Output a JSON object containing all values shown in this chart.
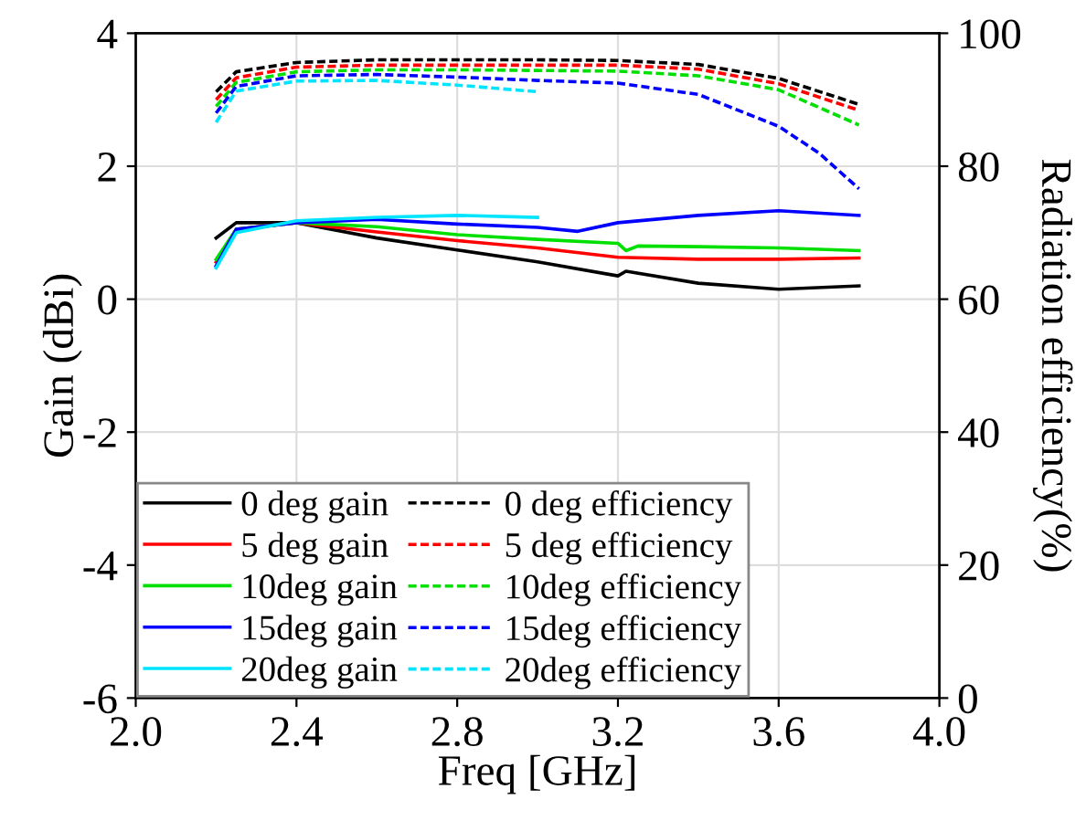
{
  "chart_data": {
    "type": "line",
    "xlabel": "Freq [GHz]",
    "ylabel": "Gain (dBi)",
    "y2label": "Radiation efficiency(%)",
    "xlim": [
      2.0,
      4.0
    ],
    "xticks": [
      {
        "value": 2.0,
        "label": "2.0"
      },
      2.4,
      2.8,
      3.2,
      3.6,
      {
        "value": 4.0,
        "label": "4.0"
      }
    ],
    "ylim": [
      -6,
      4
    ],
    "yticks": [
      -6,
      -4,
      -2,
      0,
      2,
      4
    ],
    "y2lim": [
      0,
      100
    ],
    "y2ticks": [
      0,
      20,
      40,
      60,
      80,
      100
    ],
    "grid": true,
    "legend": "bottom left",
    "marker": "none",
    "series": [
      {
        "name": "0 deg gain",
        "color": "#000000",
        "line_style": "solid",
        "x": [
          2.2,
          2.25,
          2.4,
          2.6,
          2.8,
          3.0,
          3.2,
          3.22,
          3.4,
          3.6,
          3.8
        ],
        "values": [
          0.92,
          1.15,
          1.15,
          0.92,
          0.74,
          0.56,
          0.35,
          0.42,
          0.24,
          0.15,
          0.2
        ]
      },
      {
        "name": "5 deg gain",
        "color": "#ff0000",
        "line_style": "solid",
        "x": [
          2.2,
          2.25,
          2.4,
          2.6,
          2.8,
          3.0,
          3.2,
          3.4,
          3.6,
          3.8
        ],
        "values": [
          0.56,
          1.05,
          1.15,
          1.01,
          0.88,
          0.77,
          0.63,
          0.6,
          0.6,
          0.62
        ]
      },
      {
        "name": "10deg gain",
        "color": "#00e000",
        "line_style": "solid",
        "x": [
          2.2,
          2.25,
          2.4,
          2.6,
          2.8,
          3.0,
          3.2,
          3.22,
          3.25,
          3.4,
          3.6,
          3.8
        ],
        "values": [
          0.6,
          1.05,
          1.15,
          1.09,
          0.97,
          0.9,
          0.84,
          0.73,
          0.8,
          0.79,
          0.77,
          0.73
        ]
      },
      {
        "name": "15deg gain",
        "color": "#0000ff",
        "line_style": "solid",
        "x": [
          2.2,
          2.25,
          2.4,
          2.6,
          2.8,
          3.0,
          3.1,
          3.2,
          3.4,
          3.6,
          3.8
        ],
        "values": [
          0.5,
          1.05,
          1.15,
          1.2,
          1.13,
          1.08,
          1.02,
          1.15,
          1.26,
          1.33,
          1.26
        ]
      },
      {
        "name": "20deg gain",
        "color": "#00e5ff",
        "line_style": "solid",
        "x": [
          2.2,
          2.25,
          2.4,
          2.6,
          2.8,
          3.0
        ],
        "values": [
          0.47,
          1.0,
          1.18,
          1.23,
          1.26,
          1.23
        ]
      },
      {
        "name": "0 deg efficiency",
        "color": "#000000",
        "line_style": "dashed",
        "axis": "y2",
        "x": [
          2.2,
          2.25,
          2.4,
          2.6,
          2.8,
          3.0,
          3.2,
          3.4,
          3.6,
          3.8
        ],
        "values": [
          91.2,
          94.2,
          95.6,
          96.0,
          96.0,
          96.0,
          95.9,
          95.3,
          93.2,
          89.3
        ]
      },
      {
        "name": "5 deg efficiency",
        "color": "#ff0000",
        "line_style": "dashed",
        "axis": "y2",
        "x": [
          2.2,
          2.25,
          2.4,
          2.6,
          2.8,
          3.0,
          3.2,
          3.4,
          3.6,
          3.8
        ],
        "values": [
          90.0,
          93.3,
          94.9,
          95.2,
          95.2,
          95.2,
          95.2,
          94.6,
          92.4,
          88.4
        ]
      },
      {
        "name": "10deg efficiency",
        "color": "#00e000",
        "line_style": "dashed",
        "axis": "y2",
        "x": [
          2.2,
          2.25,
          2.4,
          2.6,
          2.8,
          3.0,
          3.2,
          3.4,
          3.6,
          3.8
        ],
        "values": [
          89.0,
          92.6,
          94.2,
          94.5,
          94.5,
          94.4,
          94.3,
          93.6,
          91.5,
          86.2
        ]
      },
      {
        "name": "15deg efficiency",
        "color": "#0000ff",
        "line_style": "dashed",
        "axis": "y2",
        "x": [
          2.2,
          2.25,
          2.4,
          2.6,
          2.8,
          3.0,
          3.2,
          3.4,
          3.6,
          3.7,
          3.8
        ],
        "values": [
          88.0,
          92.0,
          93.6,
          93.8,
          93.4,
          92.9,
          92.5,
          90.8,
          86.0,
          82.0,
          76.6
        ]
      },
      {
        "name": "20deg efficiency",
        "color": "#00e5ff",
        "line_style": "dashed",
        "axis": "y2",
        "x": [
          2.2,
          2.25,
          2.4,
          2.6,
          2.8,
          3.0
        ],
        "values": [
          86.6,
          91.3,
          92.8,
          92.9,
          92.2,
          91.2
        ]
      }
    ]
  }
}
